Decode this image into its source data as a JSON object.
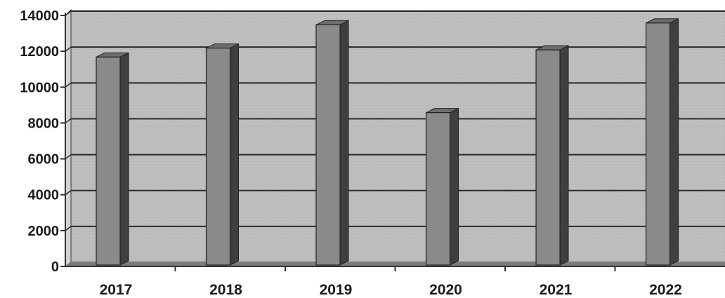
{
  "chart_data": {
    "type": "bar",
    "style": "3d-column",
    "title": "",
    "xlabel": "",
    "ylabel": "",
    "categories": [
      "2017",
      "2018",
      "2019",
      "2020",
      "2021",
      "2022"
    ],
    "values": [
      11600,
      12100,
      13400,
      8500,
      12000,
      13500
    ],
    "ylim": [
      0,
      14000
    ],
    "yticks": [
      "0",
      "2000",
      "4000",
      "6000",
      "8000",
      "10000",
      "12000",
      "14000"
    ],
    "grid": true,
    "legend": "none"
  },
  "colors": {
    "plot_back_wall": "#bdbdbd",
    "plot_side_wall": "#d2d2d2",
    "floor": "#7a7a7a",
    "bar_front": "#8a8a8a",
    "bar_side": "#3f3f3f",
    "bar_top": "#6d6d6d",
    "gridline": "#2a2a2a",
    "axis": "#333333",
    "text": "#1a1a1a"
  }
}
